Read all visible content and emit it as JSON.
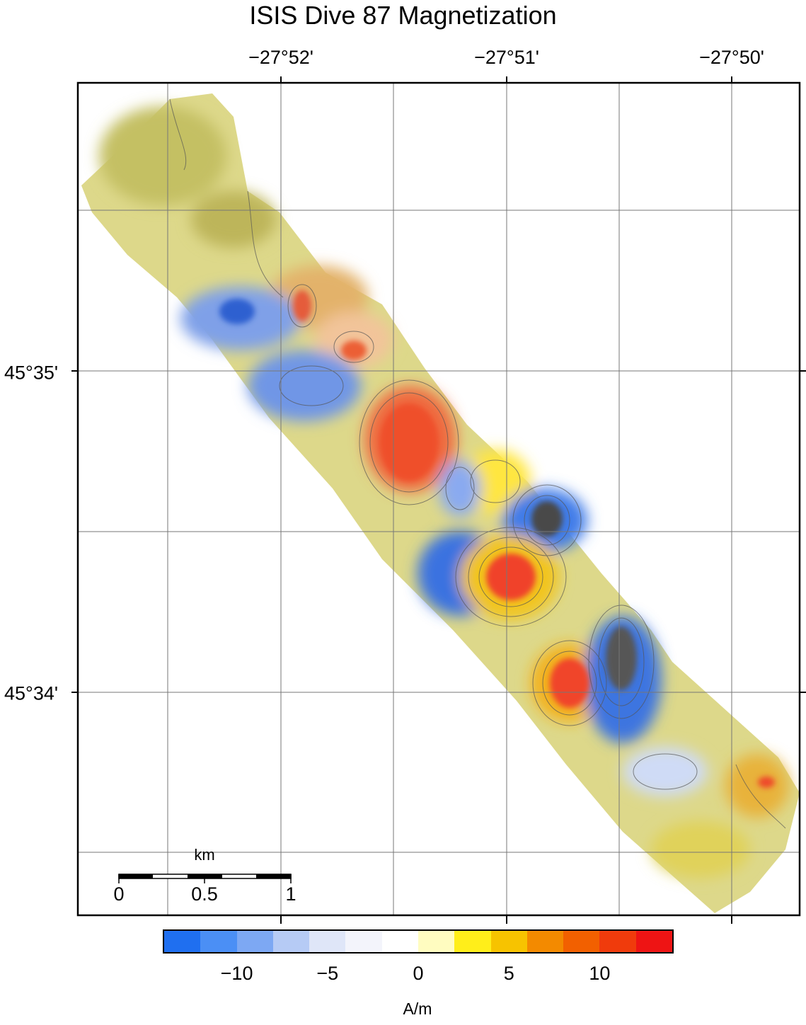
{
  "title": "ISIS Dive 87 Magnetization",
  "map": {
    "lon_labels": [
      "−27°52'",
      "−27°51'",
      "−27°50'"
    ],
    "lat_labels": [
      "45°35'",
      "45°34'"
    ],
    "grid": true
  },
  "colorbar": {
    "unit": "A/m",
    "ticks": [
      "−10",
      "−5",
      "0",
      "5",
      "10"
    ],
    "tick_values": [
      -10,
      -5,
      0,
      5,
      10
    ],
    "range": [
      -14,
      14
    ],
    "colors": [
      "#1f6ff0",
      "#4b8ff5",
      "#7da8f3",
      "#b6cbf5",
      "#dfe6f8",
      "#f3f4fb",
      "#ffffff",
      "#fffcc0",
      "#ffee1a",
      "#f7c300",
      "#f38a00",
      "#f26000",
      "#f03b0c",
      "#ee1414"
    ]
  },
  "scalebar": {
    "unit": "km",
    "ticks": [
      "0",
      "0.5",
      "1"
    ]
  }
}
